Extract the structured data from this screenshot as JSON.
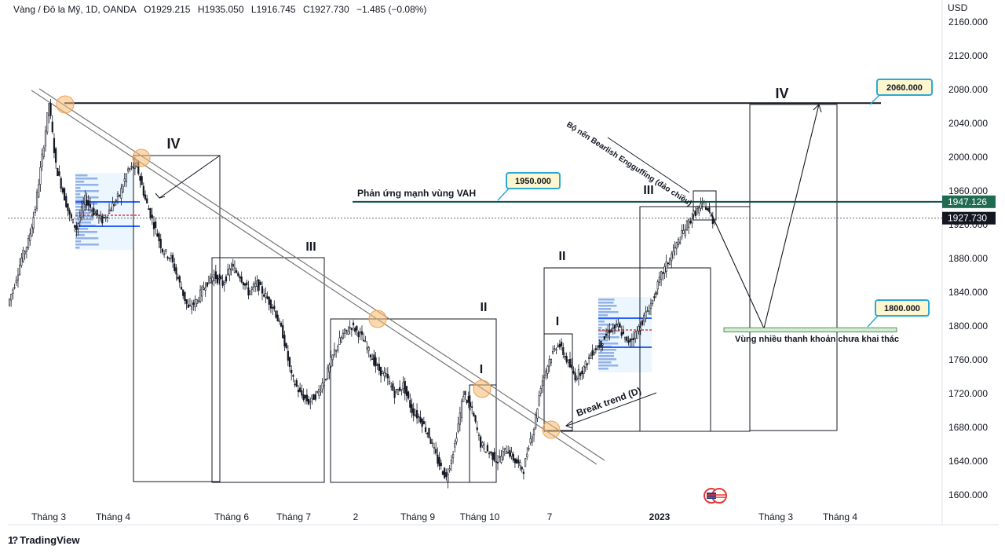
{
  "header": {
    "symbol": "Vàng / Đô la Mỹ, 1D, OANDA",
    "open": "O1929.215",
    "high": "H1935.050",
    "low": "L1916.745",
    "close": "C1927.730",
    "change": "−1.485 (−0.08%)"
  },
  "currency": "USD",
  "brand": "TradingView",
  "colors": {
    "up": "#131722",
    "down": "#131722",
    "vah_line": "#0b5345",
    "price_tag": "#131722",
    "vah_tag": "#1e6b52",
    "callout_border": "#2aa8d6",
    "callout_fill": "#fdf6cf",
    "zone_fill": "#d4ecd4",
    "profile_blue": "#2962ff",
    "highlight": "#f5b971"
  },
  "chart_data": {
    "type": "candlestick",
    "title": "",
    "y_axis": {
      "min": 1600,
      "max": 2160,
      "step": 40,
      "ticks": [
        "2160.000",
        "2120.000",
        "2080.000",
        "2040.000",
        "2000.000",
        "1960.000",
        "1920.000",
        "1880.000",
        "1840.000",
        "1800.000",
        "1760.000",
        "1720.000",
        "1680.000",
        "1640.000",
        "1600.000"
      ]
    },
    "x_labels": [
      "Tháng 3",
      "Tháng 4",
      "Tháng 6",
      "Tháng 7",
      "2",
      "Tháng 9",
      "Tháng 10",
      "7",
      "2023",
      "Tháng 3",
      "Tháng 4"
    ],
    "price_tags": {
      "vah": "1947.126",
      "last": "1927.730"
    },
    "levels": {
      "resistance": 2064,
      "vah": 1947.1,
      "liquidity_zone": [
        1793,
        1798
      ]
    },
    "callouts": {
      "target_high": "2060.000",
      "target_low": "1800.000",
      "vah_label": "1950.000"
    },
    "annotations": {
      "vah_text": "Phản ứng mạnh vùng VAH",
      "engulfing_text": "Bộ nến Bearlish Engguffing (đảo chiều)",
      "break_text": "Break trend (D)",
      "liquidity_text": "Vùng nhiều thanh khoản chưa khai thác"
    },
    "wave_labels": [
      "IV",
      "III",
      "II",
      "I",
      "I",
      "II",
      "III",
      "IV"
    ],
    "price_path": [
      [
        0,
        1825
      ],
      [
        4,
        1850
      ],
      [
        8,
        1880
      ],
      [
        12,
        1900
      ],
      [
        16,
        1940
      ],
      [
        20,
        2000
      ],
      [
        24,
        2064
      ],
      [
        28,
        1990
      ],
      [
        32,
        1960
      ],
      [
        36,
        1930
      ],
      [
        40,
        1915
      ],
      [
        45,
        1950
      ],
      [
        50,
        1935
      ],
      [
        55,
        1925
      ],
      [
        60,
        1940
      ],
      [
        65,
        1955
      ],
      [
        70,
        1985
      ],
      [
        75,
        1990
      ],
      [
        80,
        1950
      ],
      [
        85,
        1920
      ],
      [
        90,
        1890
      ],
      [
        95,
        1880
      ],
      [
        100,
        1850
      ],
      [
        105,
        1820
      ],
      [
        110,
        1830
      ],
      [
        115,
        1850
      ],
      [
        120,
        1860
      ],
      [
        125,
        1850
      ],
      [
        130,
        1870
      ],
      [
        135,
        1860
      ],
      [
        140,
        1840
      ],
      [
        145,
        1850
      ],
      [
        150,
        1835
      ],
      [
        155,
        1820
      ],
      [
        160,
        1790
      ],
      [
        165,
        1740
      ],
      [
        170,
        1720
      ],
      [
        175,
        1710
      ],
      [
        180,
        1720
      ],
      [
        185,
        1740
      ],
      [
        190,
        1770
      ],
      [
        195,
        1790
      ],
      [
        200,
        1800
      ],
      [
        205,
        1790
      ],
      [
        210,
        1770
      ],
      [
        215,
        1750
      ],
      [
        220,
        1740
      ],
      [
        225,
        1720
      ],
      [
        230,
        1730
      ],
      [
        235,
        1700
      ],
      [
        240,
        1690
      ],
      [
        245,
        1670
      ],
      [
        250,
        1640
      ],
      [
        255,
        1620
      ],
      [
        260,
        1660
      ],
      [
        265,
        1720
      ],
      [
        270,
        1700
      ],
      [
        275,
        1660
      ],
      [
        280,
        1650
      ],
      [
        285,
        1640
      ],
      [
        290,
        1655
      ],
      [
        295,
        1640
      ],
      [
        300,
        1630
      ],
      [
        303,
        1660
      ],
      [
        306,
        1680
      ],
      [
        310,
        1730
      ],
      [
        315,
        1760
      ],
      [
        320,
        1780
      ],
      [
        325,
        1760
      ],
      [
        330,
        1740
      ],
      [
        335,
        1750
      ],
      [
        340,
        1770
      ],
      [
        345,
        1780
      ],
      [
        350,
        1795
      ],
      [
        355,
        1800
      ],
      [
        360,
        1780
      ],
      [
        365,
        1790
      ],
      [
        370,
        1810
      ],
      [
        375,
        1830
      ],
      [
        380,
        1860
      ],
      [
        385,
        1880
      ],
      [
        390,
        1900
      ],
      [
        395,
        1920
      ],
      [
        400,
        1935
      ],
      [
        405,
        1945
      ],
      [
        410,
        1925
      ]
    ]
  }
}
